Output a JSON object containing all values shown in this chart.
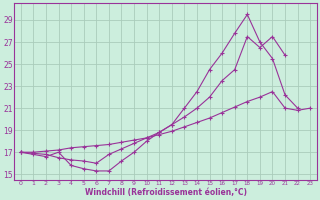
{
  "xlabel": "Windchill (Refroidissement éolien,°C)",
  "bg_color": "#cceedd",
  "grid_color": "#aaccbb",
  "line_color": "#993399",
  "spine_color": "#993399",
  "xlim": [
    -0.5,
    23.5
  ],
  "ylim": [
    14.5,
    30.5
  ],
  "yticks": [
    15,
    17,
    19,
    21,
    23,
    25,
    27,
    29
  ],
  "xticks": [
    0,
    1,
    2,
    3,
    4,
    5,
    6,
    7,
    8,
    9,
    10,
    11,
    12,
    13,
    14,
    15,
    16,
    17,
    18,
    19,
    20,
    21,
    22,
    23
  ],
  "series": [
    {
      "x": [
        0,
        1,
        2,
        3,
        4,
        5,
        6,
        7,
        8,
        9,
        10,
        11,
        12,
        13,
        14,
        15,
        16,
        17,
        18,
        19,
        20,
        21,
        22
      ],
      "y": [
        17.0,
        16.8,
        16.6,
        17.0,
        15.8,
        15.5,
        15.3,
        15.3,
        16.2,
        17.0,
        18.0,
        18.8,
        19.5,
        21.0,
        22.5,
        24.5,
        26.0,
        27.8,
        29.5,
        27.0,
        25.5,
        22.2,
        21.0
      ]
    },
    {
      "x": [
        0,
        1,
        2,
        3,
        4,
        5,
        6,
        7,
        8,
        9,
        10,
        11,
        12,
        13,
        14,
        15,
        16,
        17,
        18,
        19,
        20,
        21
      ],
      "y": [
        17.0,
        16.9,
        16.8,
        16.5,
        16.3,
        16.2,
        16.0,
        16.8,
        17.3,
        17.8,
        18.3,
        18.8,
        19.5,
        20.2,
        21.0,
        22.0,
        23.5,
        24.5,
        27.5,
        26.5,
        27.5,
        25.8
      ]
    },
    {
      "x": [
        0,
        1,
        2,
        3,
        4,
        5,
        6,
        7,
        8,
        9,
        10,
        11,
        12,
        13,
        14,
        15,
        16,
        17,
        18,
        19,
        20,
        21,
        22,
        23
      ],
      "y": [
        17.0,
        17.0,
        17.1,
        17.2,
        17.4,
        17.5,
        17.6,
        17.7,
        17.9,
        18.1,
        18.3,
        18.6,
        18.9,
        19.3,
        19.7,
        20.1,
        20.6,
        21.1,
        21.6,
        22.0,
        22.5,
        21.0,
        20.8,
        21.0
      ]
    }
  ]
}
